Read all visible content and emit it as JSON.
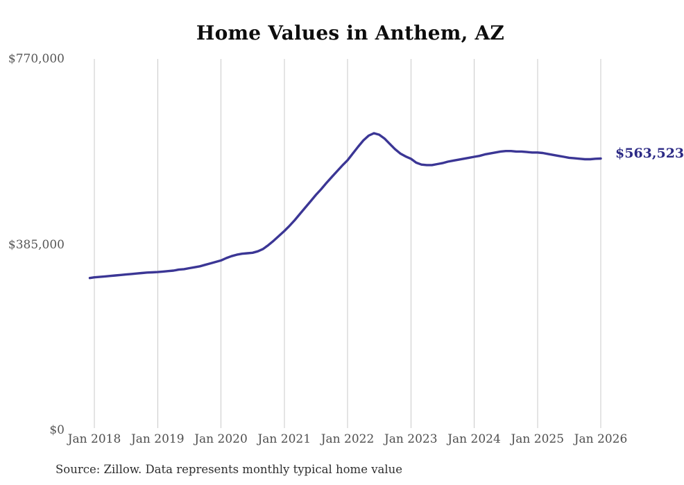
{
  "chart": {
    "title": "Home Values in Anthem, AZ",
    "end_label": "$563,523"
  },
  "footer": {
    "source": "Source: Zillow. Data represents monthly typical home value"
  },
  "chart_data": {
    "type": "line",
    "title": "Home Values in Anthem, AZ",
    "series_name": "Monthly typical home value",
    "x": [
      "2018-01",
      "2018-02",
      "2018-03",
      "2018-04",
      "2018-05",
      "2018-06",
      "2018-07",
      "2018-08",
      "2018-09",
      "2018-10",
      "2018-11",
      "2018-12",
      "2019-01",
      "2019-02",
      "2019-03",
      "2019-04",
      "2019-05",
      "2019-06",
      "2019-07",
      "2019-08",
      "2019-09",
      "2019-10",
      "2019-11",
      "2019-12",
      "2020-01",
      "2020-02",
      "2020-03",
      "2020-04",
      "2020-05",
      "2020-06",
      "2020-07",
      "2020-08",
      "2020-09",
      "2020-10",
      "2020-11",
      "2020-12",
      "2021-01",
      "2021-02",
      "2021-03",
      "2021-04",
      "2021-05",
      "2021-06",
      "2021-07",
      "2021-08",
      "2021-09",
      "2021-10",
      "2021-11",
      "2021-12",
      "2022-01",
      "2022-02",
      "2022-03",
      "2022-04",
      "2022-05",
      "2022-06",
      "2022-07",
      "2022-08",
      "2022-09",
      "2022-10",
      "2022-11",
      "2022-12",
      "2023-01",
      "2023-02",
      "2023-03",
      "2023-04",
      "2023-05",
      "2023-06",
      "2023-07",
      "2023-08",
      "2023-09",
      "2023-10",
      "2023-11",
      "2023-12",
      "2024-01",
      "2024-02",
      "2024-03",
      "2024-04",
      "2024-05",
      "2024-06",
      "2024-07",
      "2024-08",
      "2024-09",
      "2024-10",
      "2024-11",
      "2024-12",
      "2025-01",
      "2025-02",
      "2025-03",
      "2025-04",
      "2025-05",
      "2025-06",
      "2025-07",
      "2025-08",
      "2025-09",
      "2025-10",
      "2025-11",
      "2025-12",
      "2026-01"
    ],
    "values": [
      317000,
      318000,
      319000,
      320000,
      321000,
      322000,
      323000,
      324000,
      325000,
      326000,
      327000,
      327500,
      328000,
      329000,
      330000,
      331000,
      333000,
      334000,
      336000,
      338000,
      340000,
      343000,
      346000,
      349000,
      352000,
      357000,
      361000,
      364000,
      366000,
      367000,
      368000,
      371000,
      376000,
      384000,
      393000,
      403000,
      413000,
      424000,
      436000,
      449000,
      462000,
      475000,
      488000,
      500000,
      513000,
      525000,
      537000,
      549000,
      560000,
      574000,
      588000,
      601000,
      611000,
      616000,
      613000,
      605000,
      594000,
      583000,
      574000,
      568000,
      563000,
      555000,
      551000,
      550000,
      550000,
      552000,
      554000,
      557000,
      559000,
      561000,
      563000,
      565000,
      567000,
      569000,
      572000,
      574000,
      576000,
      578000,
      579000,
      579000,
      578000,
      578000,
      577000,
      576000,
      576000,
      575000,
      573000,
      571000,
      569000,
      567000,
      565000,
      564000,
      563000,
      562000,
      562000,
      563000,
      563523
    ],
    "x_ticklabels": [
      "Jan 2018",
      "Jan 2019",
      "Jan 2020",
      "Jan 2021",
      "Jan 2022",
      "Jan 2023",
      "Jan 2024",
      "Jan 2025",
      "Jan 2026"
    ],
    "y_ticks": [
      {
        "value": 0,
        "label": "$0"
      },
      {
        "value": 385000,
        "label": "$385,000"
      },
      {
        "value": 770000,
        "label": "$770,000"
      }
    ],
    "ylim": [
      0,
      770000
    ],
    "grid": "vertical-only",
    "legend": "none",
    "end_label": "$563,523",
    "colors": {
      "line": "#3b3695",
      "end_label": "#2c2a85",
      "grid": "#c9c9c9",
      "y_axis_text": "#565656",
      "x_axis_text": "#4f4f4f",
      "title": "#0d0d0d",
      "source_text": "#2e2e2e",
      "background": "#ffffff"
    }
  }
}
